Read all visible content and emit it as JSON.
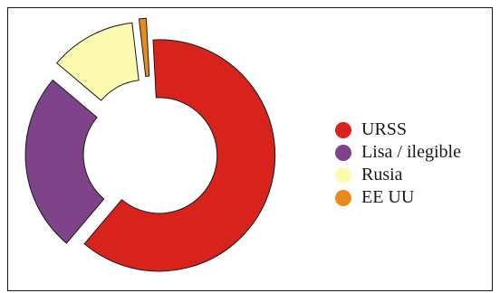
{
  "chart_data": {
    "type": "pie",
    "variant": "exploded-donut",
    "title": "",
    "categories": [
      "URSS",
      "Lisa / ilegible",
      "Rusia",
      "EE UU"
    ],
    "values": [
      62,
      25,
      12,
      1
    ],
    "colors": [
      "#d7231c",
      "#7e4388",
      "#fdfbb0",
      "#e98b1c"
    ],
    "legend": "right"
  }
}
